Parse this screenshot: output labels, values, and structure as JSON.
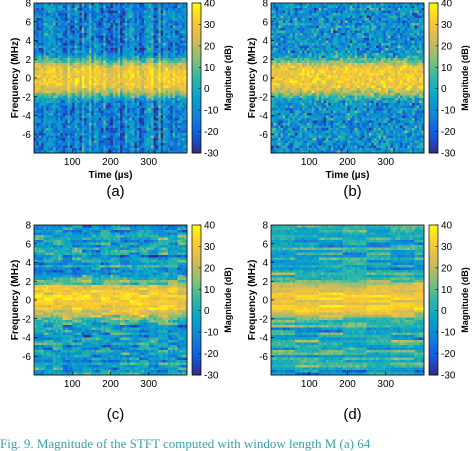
{
  "figure": {
    "caption_partial": "Fig. 9.  Magnitude of the STFT computed with window length M (a) 64"
  },
  "shared_axes": {
    "xlabel": "Time (µs)",
    "ylabel": "Frequency (MHz)",
    "colorbar_label": "Magnitude (dB)",
    "x_ticks": [
      "100",
      "200",
      "300"
    ],
    "x_tick_values": [
      100,
      200,
      300
    ],
    "y_ticks": [
      "8",
      "6",
      "4",
      "2",
      "0",
      "-2",
      "-4",
      "-6"
    ],
    "y_tick_values": [
      8,
      6,
      4,
      2,
      0,
      -2,
      -4,
      -6
    ],
    "cb_ticks": [
      "40",
      "30",
      "20",
      "10",
      "0",
      "-10",
      "-20",
      "-30"
    ],
    "cb_tick_values": [
      40,
      30,
      20,
      10,
      0,
      -10,
      -20,
      -30
    ]
  },
  "chart_data": [
    {
      "type": "heatmap",
      "panel_label": "(a)",
      "xlabel": "Time (µs)",
      "ylabel": "Frequency (MHz)",
      "colorbar_label": "Magnitude (dB)",
      "xlim": [
        0,
        400
      ],
      "ylim": [
        -8,
        8
      ],
      "clim": [
        -30,
        40
      ],
      "colormap": "parula",
      "band_center_MHz": 0,
      "band_halfwidth_MHz": 2,
      "band_level_dB": 30,
      "background_level_dB": -12,
      "texture": "vertical-streaks"
    },
    {
      "type": "heatmap",
      "panel_label": "(b)",
      "xlabel": "Time (µs)",
      "ylabel": "Frequency (MHz)",
      "colorbar_label": "Magnitude (dB)",
      "xlim": [
        0,
        400
      ],
      "ylim": [
        -8,
        8
      ],
      "clim": [
        -30,
        40
      ],
      "colormap": "parula",
      "band_center_MHz": 0,
      "band_halfwidth_MHz": 2,
      "band_level_dB": 30,
      "background_level_dB": -8,
      "texture": "granular"
    },
    {
      "type": "heatmap",
      "panel_label": "(c)",
      "xlabel": "",
      "ylabel": "Frequency (MHz)",
      "colorbar_label": "Magnitude (dB)",
      "xlim": [
        0,
        400
      ],
      "ylim": [
        -8,
        8
      ],
      "clim": [
        -30,
        40
      ],
      "colormap": "parula",
      "band_center_MHz": 0,
      "band_halfwidth_MHz": 2,
      "band_level_dB": 31,
      "background_level_dB": -4,
      "texture": "horizontal-streaks"
    },
    {
      "type": "heatmap",
      "panel_label": "(d)",
      "xlabel": "",
      "ylabel": "Frequency (MHz)",
      "colorbar_label": "Magnitude (dB)",
      "xlim": [
        0,
        400
      ],
      "ylim": [
        -8,
        8
      ],
      "clim": [
        -30,
        40
      ],
      "colormap": "parula",
      "band_center_MHz": 0,
      "band_halfwidth_MHz": 2,
      "band_level_dB": 30,
      "background_level_dB": 0,
      "texture": "long-horizontal-streaks"
    }
  ],
  "colors": {
    "parula_stops": [
      "#352a87",
      "#0f5cdd",
      "#1481d6",
      "#06a4ca",
      "#2eb7a4",
      "#87bf77",
      "#d1bb59",
      "#fec832",
      "#f9fb0e"
    ],
    "axis": "#000000",
    "caption": "#3aa0a8"
  }
}
